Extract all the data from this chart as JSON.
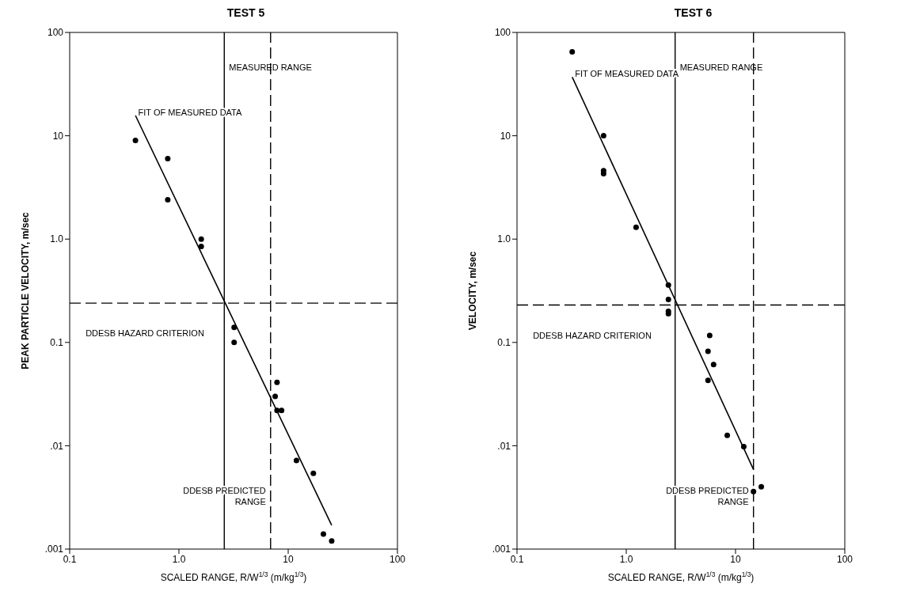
{
  "chart_data": [
    {
      "type": "scatter",
      "title": "TEST 5",
      "xlabel": "SCALED RANGE, R/W$^{1/3}$ (m/kg$^{1/3}$)",
      "ylabel": "PEAK PARTICLE VELOCITY, m/sec",
      "log": "xy",
      "grid": false,
      "legend": false,
      "marker": "circle",
      "xlim": [
        0.1,
        100
      ],
      "xticks": [
        0.1,
        {
          "value": 1,
          "label": "1.0"
        },
        10,
        100
      ],
      "ylim": [
        0.001,
        100
      ],
      "yticks": [
        {
          "value": 0.001,
          "label": ".001"
        },
        {
          "value": 0.01,
          "label": ".01"
        },
        0.1,
        {
          "value": 1,
          "label": "1.0"
        },
        10,
        100
      ],
      "series": [
        {
          "type": "scatter",
          "color": "#000000",
          "x": [
            0.4,
            0.79,
            0.79,
            1.6,
            1.6,
            3.2,
            3.2,
            7.9,
            7.6,
            7.9,
            8.7,
            11.9,
            17,
            21,
            25
          ],
          "values": [
            9.0,
            6.0,
            2.4,
            1.0,
            0.85,
            0.14,
            0.1,
            0.041,
            0.03,
            0.022,
            0.022,
            0.0072,
            0.0054,
            0.0014,
            0.0012
          ]
        },
        {
          "type": "line",
          "marker": "none",
          "name": "FIT OF MEASURED DATA",
          "color": "#000000",
          "x": [
            0.4,
            25
          ],
          "values": [
            15.7,
            0.0017
          ]
        }
      ],
      "ref_lines": [
        {
          "axis": "y",
          "value": 0.24,
          "label": "DDESB HAZARD CRITERION",
          "line_style": "dashed",
          "color": "#000000"
        },
        {
          "axis": "x",
          "value": 2.6,
          "label": "MEASURED RANGE",
          "line_style": "solid",
          "color": "#000000"
        },
        {
          "axis": "x",
          "value": 6.9,
          "label": "DDESB PREDICTED RANGE",
          "line_style": "dashed",
          "color": "#000000"
        }
      ]
    },
    {
      "type": "scatter",
      "title": "TEST 6",
      "xlabel": "SCALED RANGE, R/W$^{1/3}$ (m/kg$^{1/3}$)",
      "ylabel": "VELOCITY, m/sec",
      "log": "xy",
      "grid": false,
      "legend": false,
      "marker": "circle",
      "xlim": [
        0.1,
        100
      ],
      "xticks": [
        0.1,
        {
          "value": 1,
          "label": "1.0"
        },
        10,
        100
      ],
      "ylim": [
        0.001,
        100
      ],
      "yticks": [
        {
          "value": 0.001,
          "label": ".001"
        },
        {
          "value": 0.01,
          "label": ".01"
        },
        0.1,
        {
          "value": 1,
          "label": "1.0"
        },
        10,
        100
      ],
      "series": [
        {
          "type": "scatter",
          "color": "#000000",
          "x": [
            0.32,
            0.62,
            0.62,
            0.62,
            1.23,
            2.43,
            2.43,
            2.43,
            2.43,
            5.8,
            5.6,
            6.3,
            5.6,
            8.4,
            11.9,
            14.6,
            17.2
          ],
          "values": [
            65,
            10,
            4.6,
            4.3,
            1.3,
            0.36,
            0.26,
            0.19,
            0.2,
            0.117,
            0.082,
            0.061,
            0.043,
            0.0126,
            0.0098,
            0.0036,
            0.004
          ]
        },
        {
          "type": "line",
          "marker": "none",
          "name": "FIT OF MEASURED DATA",
          "color": "#000000",
          "x": [
            0.32,
            14.6
          ],
          "values": [
            37,
            0.0059
          ]
        }
      ],
      "ref_lines": [
        {
          "axis": "y",
          "value": 0.23,
          "label": "DDESB HAZARD CRITERION",
          "line_style": "dashed",
          "color": "#000000"
        },
        {
          "axis": "x",
          "value": 2.8,
          "label": "MEASURED RANGE",
          "line_style": "solid",
          "color": "#000000"
        },
        {
          "axis": "x",
          "value": 14.6,
          "label": "DDESB PREDICTED RANGE",
          "line_style": "dashed",
          "color": "#000000"
        }
      ]
    }
  ]
}
